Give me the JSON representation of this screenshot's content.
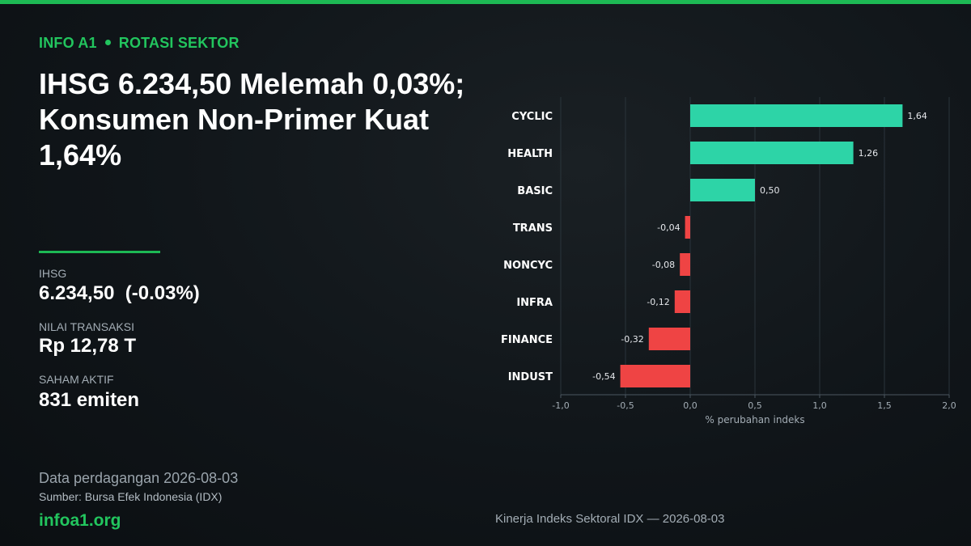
{
  "colors": {
    "accent": "#1db954",
    "positive": "#2dd4a7",
    "negative": "#ef4444"
  },
  "header": {
    "tag": "INFO A1",
    "section": "ROTASI SEKTOR"
  },
  "headline": "IHSG 6.234,50 Melemah 0,03%; Konsumen Non-Primer Kuat 1,64%",
  "stats": [
    {
      "label": "IHSG",
      "value": "6.234,50  (-0.03%)"
    },
    {
      "label": "NILAI TRANSAKSI",
      "value": "Rp 12,78 T"
    },
    {
      "label": "SAHAM AKTIF",
      "value": "831 emiten"
    }
  ],
  "footer": {
    "date_line": "Data perdagangan 2026-08-03",
    "source": "Sumber: Bursa Efek Indonesia (IDX)",
    "brand": "infoa1.org",
    "caption": "Kinerja Indeks Sektoral IDX — 2026-08-03"
  },
  "chart_data": {
    "type": "bar",
    "orientation": "horizontal",
    "categories": [
      "CYCLIC",
      "HEALTH",
      "BASIC",
      "TRANS",
      "NONCYC",
      "INFRA",
      "FINANCE",
      "INDUST"
    ],
    "values": [
      1.64,
      1.26,
      0.5,
      -0.04,
      -0.08,
      -0.12,
      -0.32,
      -0.54
    ],
    "value_labels": [
      "1,64",
      "1,26",
      "0,50",
      "-0,04",
      "-0,08",
      "-0,12",
      "-0,32",
      "-0,54"
    ],
    "xlabel": "% perubahan indeks",
    "xlim": [
      -1.0,
      2.0
    ],
    "xticks": [
      -1.0,
      -0.5,
      0.0,
      0.5,
      1.0,
      1.5,
      2.0
    ],
    "xtick_labels": [
      "-1,0",
      "-0,5",
      "0,0",
      "0,5",
      "1,0",
      "1,5",
      "2,0"
    ],
    "grid": true,
    "legend": "none"
  }
}
